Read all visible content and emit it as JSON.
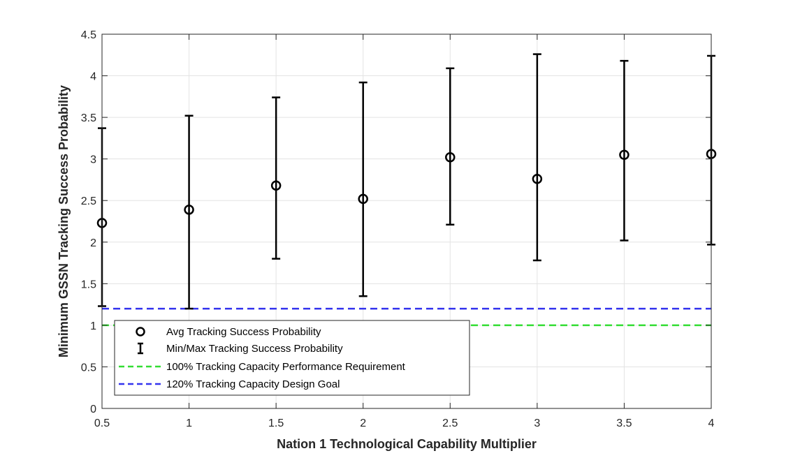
{
  "chart_data": {
    "type": "scatter",
    "title": "",
    "xlabel": "Nation 1 Technological Capability Multiplier",
    "ylabel": "Minimum GSSN Tracking Success Probability",
    "xlim": [
      0.5,
      4
    ],
    "ylim": [
      0,
      4.5
    ],
    "xticks": [
      "0.5",
      "1",
      "1.5",
      "2",
      "2.5",
      "3",
      "3.5",
      "4"
    ],
    "yticks": [
      "0",
      "0.5",
      "1",
      "1.5",
      "2",
      "2.5",
      "3",
      "3.5",
      "4",
      "4.5"
    ],
    "grid": true,
    "legend_position": "bottom-left",
    "x": [
      0.5,
      1,
      1.5,
      2,
      2.5,
      3,
      3.5,
      4
    ],
    "series": [
      {
        "name": "Avg Tracking Success Probability",
        "marker": "circle",
        "color": "#000000",
        "values": [
          2.23,
          2.39,
          2.68,
          2.52,
          3.02,
          2.76,
          3.05,
          3.06
        ]
      },
      {
        "name": "Min/Max Tracking Success Probability",
        "marker": "errorbar",
        "color": "#000000",
        "min": [
          1.23,
          1.2,
          1.8,
          1.35,
          2.21,
          1.78,
          2.02,
          1.97
        ],
        "max": [
          3.37,
          3.52,
          3.74,
          3.92,
          4.09,
          4.26,
          4.18,
          4.24
        ]
      },
      {
        "name": "100% Tracking Capacity Performance Requirement",
        "style": "dashed",
        "color": "#33dd33",
        "value": 1.0
      },
      {
        "name": "120% Tracking Capacity Design Goal",
        "style": "dashed",
        "color": "#3333ee",
        "value": 1.2
      }
    ]
  }
}
